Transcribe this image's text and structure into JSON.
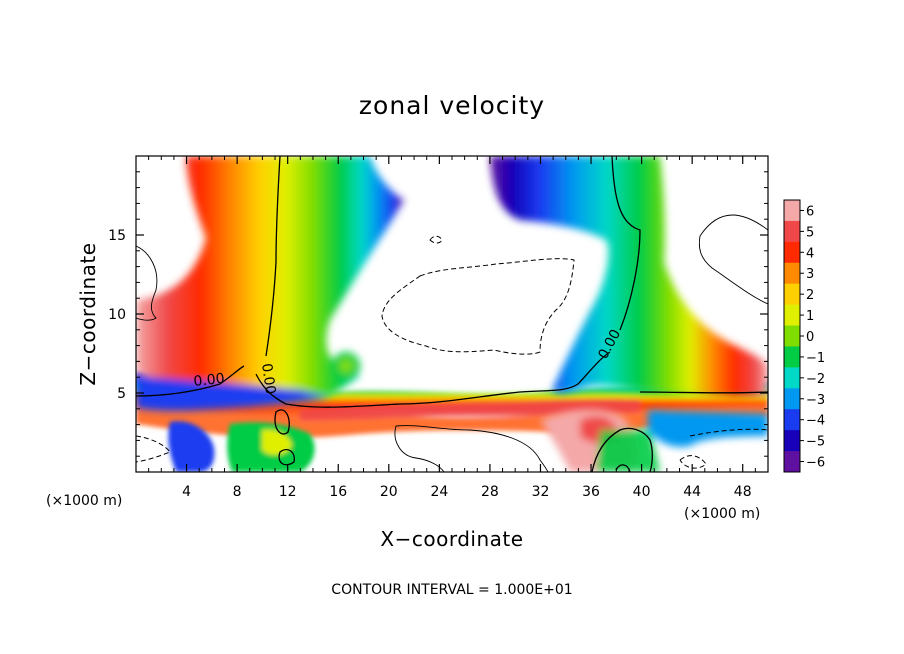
{
  "chart_data": {
    "type": "heatmap",
    "title": "zonal velocity",
    "xlabel": "X−coordinate",
    "ylabel": "Z−coordinate",
    "x_unit_label": "(×1000 m)",
    "z_unit_label": "(×1000 m)",
    "footer": "CONTOUR INTERVAL = 1.000E+01",
    "xlim": [
      0,
      50
    ],
    "ylim": [
      0,
      20
    ],
    "x_ticks": [
      4,
      8,
      12,
      16,
      20,
      24,
      28,
      32,
      36,
      40,
      44,
      48
    ],
    "y_ticks": [
      5,
      10,
      15
    ],
    "colorbar": {
      "ticks": [
        6,
        5,
        4,
        3,
        2,
        1,
        0,
        -1,
        -2,
        -3,
        -4,
        -5,
        -6
      ],
      "tick_labels": [
        "6",
        "5",
        "4",
        "3",
        "2",
        "1",
        "0",
        "−1",
        "−2",
        "−3",
        "−4",
        "−5",
        "−6"
      ],
      "range": [
        -6,
        6
      ],
      "colors": [
        "#f4a8a8",
        "#f04848",
        "#ff2a00",
        "#ff8a00",
        "#ffd000",
        "#e0ef00",
        "#7fdd00",
        "#00cc44",
        "#00d8c8",
        "#0098f0",
        "#1a3cf0",
        "#1800b8",
        "#6010a0"
      ]
    },
    "contour_labels": [
      "0.00",
      "0.00",
      "0.00"
    ],
    "grid": false
  }
}
